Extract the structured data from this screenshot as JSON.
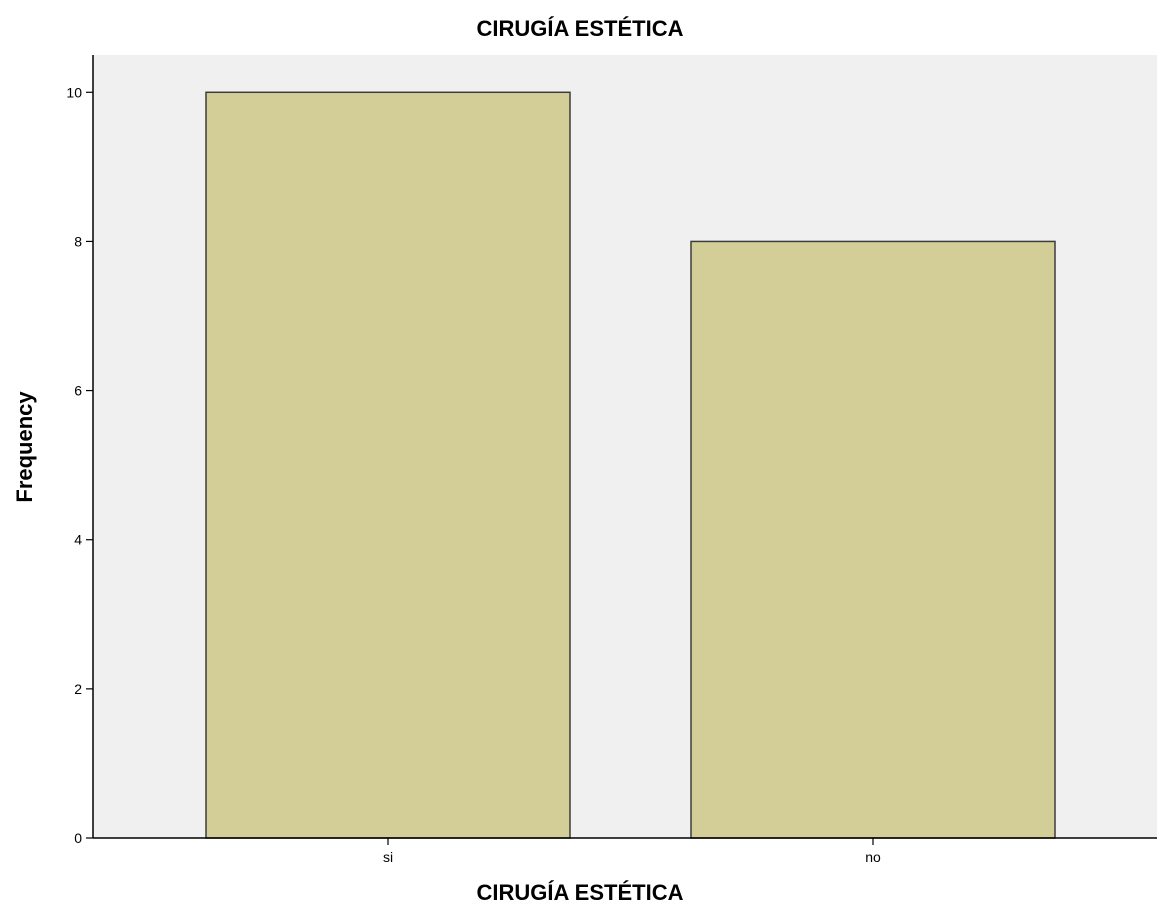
{
  "chart_data": {
    "type": "bar",
    "title": "CIRUGÍA ESTÉTICA",
    "xlabel": "CIRUGÍA ESTÉTICA",
    "ylabel": "Frequency",
    "categories": [
      "si",
      "no"
    ],
    "values": [
      10,
      8
    ],
    "ylim": [
      0,
      10.5
    ],
    "yticks": [
      0,
      2,
      4,
      6,
      8,
      10
    ],
    "grid": false,
    "legend": "none",
    "colors": {
      "bar_fill": "#d3cd97",
      "bar_stroke": "#3c3c3c",
      "plot_background": "#f0f0f0",
      "axis": "#000000"
    }
  }
}
